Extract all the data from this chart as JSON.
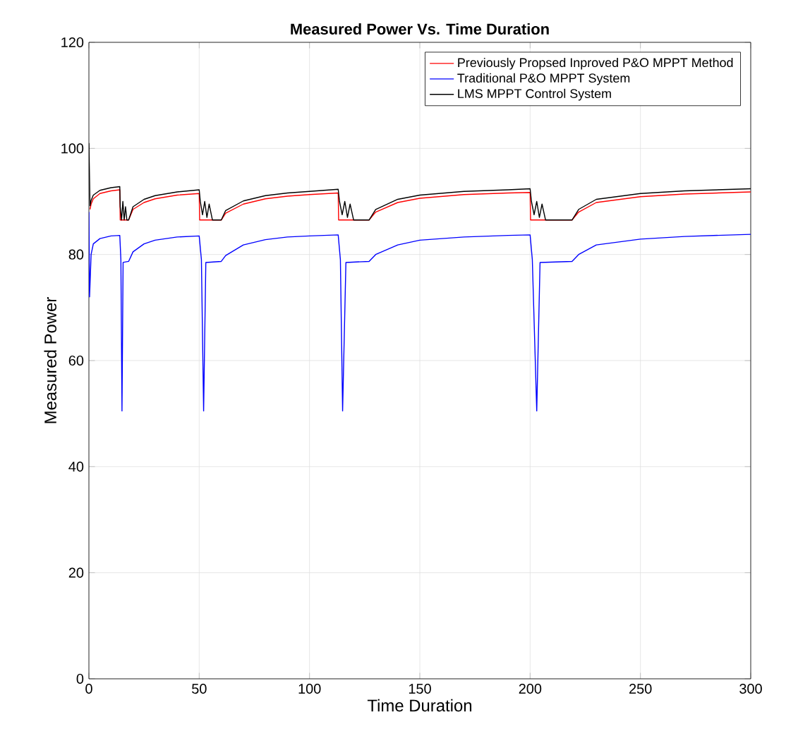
{
  "chart_data": {
    "type": "line",
    "title": "Measured Power Vs. Time Duration",
    "xlabel": "Time Duration",
    "ylabel": "Measured Power",
    "xlim": [
      0,
      300
    ],
    "ylim": [
      0,
      120
    ],
    "xticks": [
      0,
      50,
      100,
      150,
      200,
      250,
      300
    ],
    "yticks": [
      0,
      20,
      40,
      60,
      80,
      100,
      120
    ],
    "grid": true,
    "legend": "top right",
    "series": [
      {
        "name": "Previously Propsed Inproved P&O MPPT Method",
        "color": "#ff0000",
        "x": [
          0.5,
          1,
          2,
          5,
          10,
          14,
          14.2,
          18,
          20,
          25,
          30,
          40,
          50,
          50.2,
          60,
          62,
          70,
          80,
          90,
          100,
          113,
          113.2,
          127,
          130,
          140,
          150,
          170,
          190,
          200,
          200.2,
          219,
          222,
          230,
          250,
          270,
          300
        ],
        "values": [
          88.5,
          89.5,
          90.5,
          91.5,
          92,
          92.2,
          86.5,
          86.5,
          88.5,
          89.8,
          90.5,
          91.2,
          91.5,
          86.5,
          86.5,
          87.8,
          89.5,
          90.5,
          91,
          91.3,
          91.6,
          86.5,
          86.5,
          88,
          89.8,
          90.6,
          91.3,
          91.6,
          91.7,
          86.5,
          86.5,
          88,
          89.8,
          90.9,
          91.4,
          91.8
        ]
      },
      {
        "name": "Traditional P&O MPPT System",
        "color": "#0000ff",
        "x": [
          0,
          0.3,
          1,
          2,
          5,
          10,
          14,
          14.5,
          15,
          15.5,
          18,
          20,
          25,
          30,
          40,
          50,
          51,
          52,
          53,
          60,
          62,
          70,
          80,
          90,
          100,
          113,
          114,
          115,
          116.5,
          127,
          130,
          140,
          150,
          170,
          190,
          200,
          201,
          203,
          204.5,
          219,
          222,
          230,
          250,
          270,
          300
        ],
        "values": [
          88,
          72,
          80,
          82,
          83,
          83.5,
          83.6,
          79,
          50.5,
          78.5,
          78.7,
          80.5,
          82,
          82.7,
          83.3,
          83.5,
          79,
          50.5,
          78.5,
          78.7,
          79.8,
          81.8,
          82.8,
          83.3,
          83.5,
          83.7,
          79,
          50.5,
          78.5,
          78.7,
          80,
          81.8,
          82.7,
          83.3,
          83.6,
          83.7,
          79,
          50.5,
          78.5,
          78.7,
          80,
          81.8,
          82.9,
          83.4,
          83.8
        ]
      },
      {
        "name": "LMS MPPT Control System",
        "color": "#000000",
        "x": [
          0,
          0.5,
          1,
          2,
          5,
          10,
          14,
          14.2,
          14.8,
          15.4,
          16,
          16.6,
          17.2,
          18,
          20,
          25,
          30,
          40,
          50,
          50.5,
          51.5,
          52.5,
          53.5,
          54.5,
          56,
          60,
          62,
          70,
          80,
          90,
          100,
          113,
          113.6,
          114.8,
          116,
          117.2,
          118.4,
          120,
          127,
          130,
          140,
          150,
          170,
          190,
          200,
          200.6,
          201.8,
          203,
          204.2,
          205.4,
          207,
          219,
          222,
          230,
          250,
          270,
          300
        ],
        "values": [
          101,
          89.2,
          90.2,
          91.2,
          92.1,
          92.6,
          92.8,
          89,
          86.5,
          90,
          86.5,
          89,
          86.5,
          86.5,
          89,
          90.4,
          91.1,
          91.8,
          92.2,
          90,
          87.5,
          90,
          87,
          89.5,
          86.5,
          86.5,
          88.3,
          90.1,
          91.1,
          91.6,
          91.9,
          92.3,
          90,
          87.5,
          90,
          87,
          89.5,
          86.5,
          86.5,
          88.5,
          90.4,
          91.2,
          91.9,
          92.2,
          92.4,
          90,
          87.5,
          90,
          87,
          89.5,
          86.5,
          86.5,
          88.5,
          90.4,
          91.5,
          92,
          92.4
        ]
      }
    ]
  }
}
